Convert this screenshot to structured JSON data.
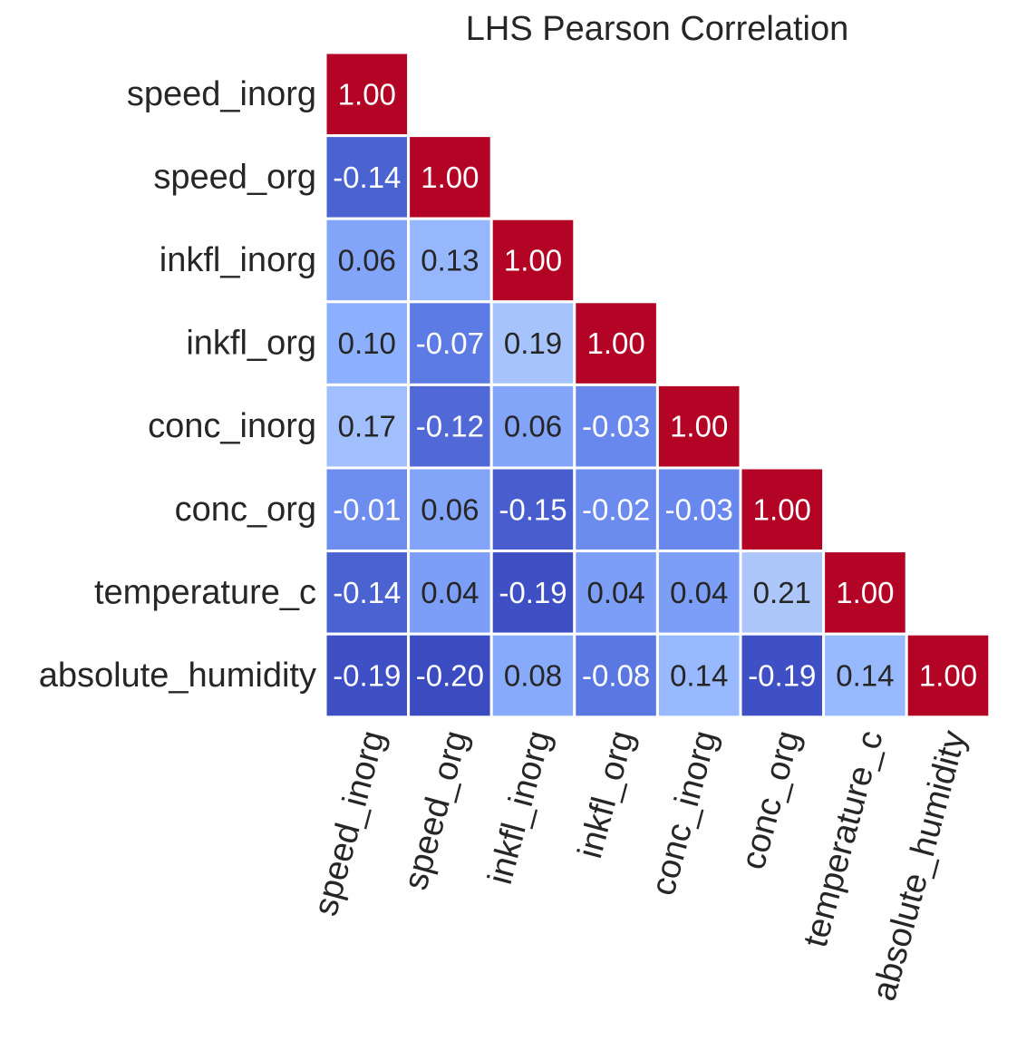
{
  "chart_data": {
    "type": "heatmap",
    "title": "LHS Pearson Correlation",
    "variables": [
      "speed_inorg",
      "speed_org",
      "inkfl_inorg",
      "inkfl_org",
      "conc_inorg",
      "conc_org",
      "temperature_c",
      "absolute_humidity"
    ],
    "matrix": [
      [
        1.0
      ],
      [
        -0.14,
        1.0
      ],
      [
        0.06,
        0.13,
        1.0
      ],
      [
        0.1,
        -0.07,
        0.19,
        1.0
      ],
      [
        0.17,
        -0.12,
        0.06,
        -0.03,
        1.0
      ],
      [
        -0.01,
        0.06,
        -0.15,
        -0.02,
        -0.03,
        1.0
      ],
      [
        -0.14,
        0.04,
        -0.19,
        0.04,
        0.04,
        0.21,
        1.0
      ],
      [
        -0.19,
        -0.2,
        0.08,
        -0.08,
        0.14,
        -0.19,
        0.14,
        1.0
      ]
    ],
    "lower_triangle_only": true,
    "value_format": "0.00",
    "colormap": "coolwarm",
    "colors": {
      "high": "#b40426",
      "mid_low": "#7b9ff9",
      "low": "#3b4cc0",
      "light": "#b5cdfa",
      "grid_line": "#ffffff",
      "text_dark": "#262626",
      "text_light": "#ffffff"
    },
    "grid": false,
    "colorbar": false
  }
}
